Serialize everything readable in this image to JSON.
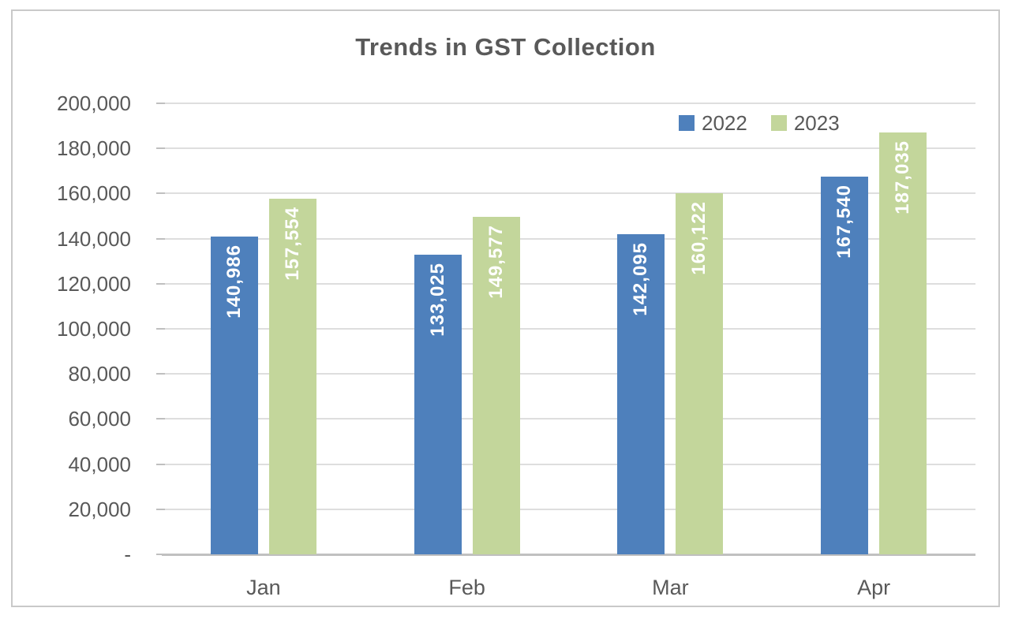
{
  "chart_data": {
    "type": "bar",
    "title": "Trends in GST Collection",
    "categories": [
      "Jan",
      "Feb",
      "Mar",
      "Apr"
    ],
    "series": [
      {
        "name": "2022",
        "color": "#4e80bc",
        "values": [
          140986,
          133025,
          142095,
          167540
        ],
        "labels": [
          "140,986",
          "133,025",
          "142,095",
          "167,540"
        ]
      },
      {
        "name": "2023",
        "color": "#c3d69b",
        "values": [
          157554,
          149577,
          160122,
          187035
        ],
        "labels": [
          "157,554",
          "149,577",
          "160,122",
          "187,035"
        ]
      }
    ],
    "ylim": [
      0,
      200000
    ],
    "ytick_step": 20000,
    "ytick_labels": [
      "-",
      "20,000",
      "40,000",
      "60,000",
      "80,000",
      "100,000",
      "120,000",
      "140,000",
      "160,000",
      "180,000",
      "200,000"
    ],
    "grid": true,
    "legend_position": "top-right",
    "value_label_placement": "inside-end-rotated",
    "colors": {
      "title_text": "#595959",
      "axis_text": "#595959",
      "gridline": "#dedede",
      "axis_line": "#c0c0c0",
      "value_label_text": "#ffffff",
      "frame_border": "#c9c9c9"
    }
  }
}
